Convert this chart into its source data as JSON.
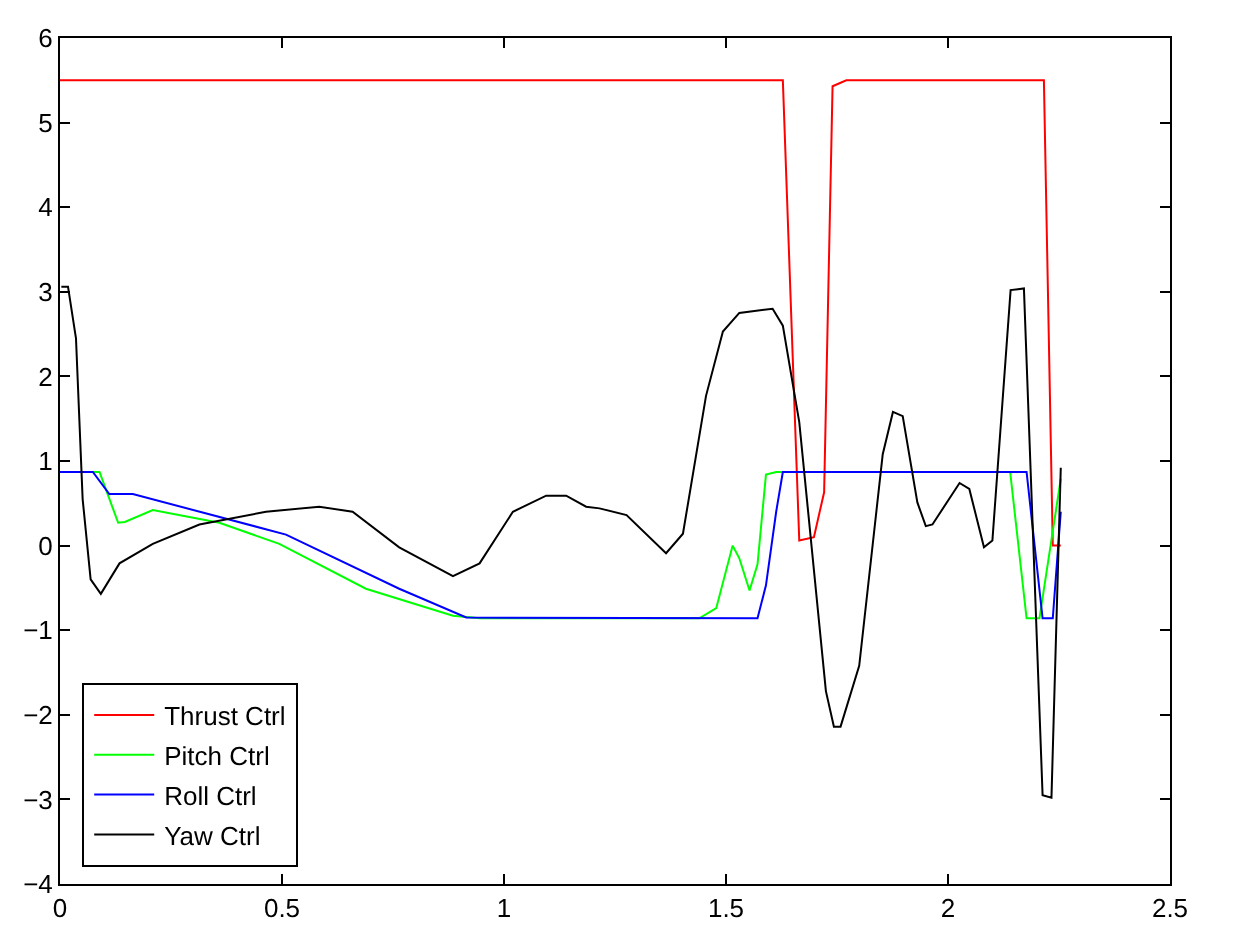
{
  "chart_data": {
    "type": "line",
    "xlim": [
      0,
      2.5
    ],
    "ylim": [
      -4,
      6
    ],
    "xticks": [
      0,
      0.5,
      1,
      1.5,
      2,
      2.5
    ],
    "yticks": [
      -4,
      -3,
      -2,
      -1,
      0,
      1,
      2,
      3,
      4,
      5,
      6
    ],
    "legend": "bottom left",
    "marker": "none",
    "line_style": "solid",
    "series": [
      {
        "name": "Thrust Ctrl",
        "color": "#ff0000",
        "x": [
          0,
          0.5,
          1,
          1.5,
          1.628,
          1.665,
          1.698,
          1.721,
          1.74,
          1.771,
          2.0,
          2.216,
          2.236,
          2.254
        ],
        "values": [
          5.5,
          5.5,
          5.5,
          5.5,
          5.5,
          0.06,
          0.1,
          0.63,
          5.43,
          5.5,
          5.5,
          5.5,
          0,
          0
        ]
      },
      {
        "name": "Pitch Ctrl",
        "color": "#00ff00",
        "x": [
          0,
          0.089,
          0.131,
          0.146,
          0.209,
          0.359,
          0.494,
          0.689,
          0.885,
          0.946,
          1.44,
          1.478,
          1.515,
          1.53,
          1.553,
          1.571,
          1.59,
          1.613,
          2.14,
          2.177,
          2.206,
          2.254
        ],
        "values": [
          0.87,
          0.87,
          0.27,
          0.28,
          0.42,
          0.27,
          0.02,
          -0.51,
          -0.83,
          -0.86,
          -0.86,
          -0.74,
          0.0,
          -0.15,
          -0.53,
          -0.22,
          0.84,
          0.87,
          0.87,
          -0.86,
          -0.86,
          0.79
        ]
      },
      {
        "name": "Roll Ctrl",
        "color": "#0000ff",
        "x": [
          0,
          0.074,
          0.111,
          0.164,
          0.509,
          0.764,
          0.915,
          1.571,
          1.59,
          1.613,
          1.628,
          2.177,
          2.213,
          2.236,
          2.254
        ],
        "values": [
          0.87,
          0.87,
          0.61,
          0.61,
          0.13,
          -0.51,
          -0.85,
          -0.86,
          -0.47,
          0.4,
          0.87,
          0.87,
          -0.86,
          -0.86,
          0.4
        ]
      },
      {
        "name": "Yaw Ctrl",
        "color": "#000000",
        "x": [
          0.003,
          0.018,
          0.036,
          0.051,
          0.069,
          0.092,
          0.134,
          0.209,
          0.314,
          0.464,
          0.584,
          0.659,
          0.764,
          0.885,
          0.945,
          1.02,
          1.095,
          1.14,
          1.185,
          1.215,
          1.276,
          1.365,
          1.403,
          1.455,
          1.493,
          1.53,
          1.605,
          1.628,
          1.665,
          1.725,
          1.743,
          1.758,
          1.8,
          1.853,
          1.876,
          1.898,
          1.931,
          1.95,
          1.965,
          2.026,
          2.048,
          2.081,
          2.1,
          2.141,
          2.171,
          2.213,
          2.233,
          2.254
        ],
        "values": [
          3.06,
          3.06,
          2.45,
          0.55,
          -0.4,
          -0.57,
          -0.21,
          0.02,
          0.25,
          0.4,
          0.46,
          0.4,
          -0.02,
          -0.36,
          -0.21,
          0.4,
          0.59,
          0.59,
          0.46,
          0.44,
          0.36,
          -0.09,
          0.14,
          1.77,
          2.53,
          2.75,
          2.8,
          2.6,
          1.46,
          -1.72,
          -2.14,
          -2.14,
          -1.42,
          1.08,
          1.58,
          1.53,
          0.51,
          0.23,
          0.25,
          0.74,
          0.67,
          -0.02,
          0.06,
          3.02,
          3.04,
          -2.95,
          -2.98,
          0.92
        ]
      }
    ]
  }
}
